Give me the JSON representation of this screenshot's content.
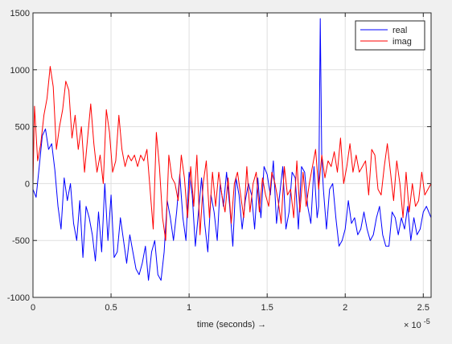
{
  "chart_data": {
    "type": "line",
    "xlabel": "time  (seconds) →",
    "x_exponent_label": "× 10",
    "x_exponent_value": "-5",
    "xlim": [
      0,
      2.55
    ],
    "ylim": [
      -1000,
      1500
    ],
    "x_ticks": [
      0,
      0.5,
      1,
      1.5,
      2,
      2.5
    ],
    "x_tick_labels": [
      "0",
      "0.5",
      "1",
      "1.5",
      "2",
      "2.5"
    ],
    "y_ticks": [
      -1000,
      -500,
      0,
      500,
      1000,
      1500
    ],
    "y_tick_labels": [
      "-1000",
      "-500",
      "0",
      "500",
      "1000",
      "1500"
    ],
    "grid": true,
    "legend_position": "top-right",
    "series": [
      {
        "name": "real",
        "color": "#0000ff",
        "x": [
          0,
          0.02,
          0.04,
          0.06,
          0.08,
          0.1,
          0.12,
          0.14,
          0.16,
          0.18,
          0.2,
          0.22,
          0.24,
          0.26,
          0.28,
          0.3,
          0.32,
          0.34,
          0.36,
          0.38,
          0.4,
          0.42,
          0.44,
          0.46,
          0.48,
          0.5,
          0.52,
          0.54,
          0.56,
          0.58,
          0.6,
          0.62,
          0.64,
          0.66,
          0.68,
          0.7,
          0.72,
          0.74,
          0.76,
          0.78,
          0.8,
          0.82,
          0.84,
          0.86,
          0.88,
          0.9,
          0.92,
          0.94,
          0.96,
          0.98,
          1.0,
          1.02,
          1.04,
          1.06,
          1.08,
          1.1,
          1.12,
          1.14,
          1.16,
          1.18,
          1.2,
          1.22,
          1.24,
          1.26,
          1.28,
          1.3,
          1.32,
          1.34,
          1.36,
          1.38,
          1.4,
          1.42,
          1.44,
          1.46,
          1.48,
          1.5,
          1.52,
          1.54,
          1.56,
          1.58,
          1.6,
          1.62,
          1.64,
          1.66,
          1.68,
          1.7,
          1.72,
          1.74,
          1.76,
          1.78,
          1.8,
          1.82,
          1.83,
          1.84,
          1.85,
          1.86,
          1.88,
          1.9,
          1.92,
          1.94,
          1.96,
          1.98,
          2.0,
          2.02,
          2.04,
          2.06,
          2.08,
          2.1,
          2.12,
          2.14,
          2.16,
          2.18,
          2.2,
          2.22,
          2.24,
          2.26,
          2.28,
          2.3,
          2.32,
          2.34,
          2.36,
          2.38,
          2.4,
          2.42,
          2.44,
          2.46,
          2.48,
          2.5,
          2.52,
          2.55
        ],
        "y": [
          -50,
          -120,
          150,
          420,
          480,
          300,
          350,
          120,
          -200,
          -400,
          50,
          -150,
          0,
          -350,
          -500,
          -150,
          -650,
          -200,
          -300,
          -450,
          -680,
          -250,
          -600,
          0,
          -500,
          -100,
          -650,
          -600,
          -300,
          -500,
          -700,
          -450,
          -600,
          -750,
          -800,
          -700,
          -550,
          -850,
          -600,
          -500,
          -800,
          -850,
          -600,
          -150,
          -300,
          -500,
          -250,
          80,
          -300,
          -500,
          100,
          -100,
          -550,
          -250,
          50,
          -350,
          -600,
          -100,
          -250,
          -500,
          0,
          -200,
          100,
          -200,
          -550,
          50,
          -100,
          -400,
          -150,
          0,
          -100,
          -400,
          50,
          -300,
          150,
          80,
          -100,
          200,
          -350,
          -100,
          150,
          -400,
          -250,
          100,
          50,
          -400,
          150,
          100,
          -200,
          -350,
          150,
          -300,
          -200,
          1450,
          200,
          -50,
          -400,
          -50,
          0,
          -300,
          -550,
          -500,
          -400,
          -150,
          -350,
          -300,
          -450,
          -400,
          -250,
          -400,
          -500,
          -450,
          -300,
          -200,
          -450,
          -550,
          -550,
          -250,
          -300,
          -450,
          -300,
          -400,
          -200,
          -500,
          -300,
          -450,
          -400,
          -250,
          -200,
          -300
        ]
      },
      {
        "name": "imag",
        "color": "#ff0000",
        "x": [
          0,
          0.01,
          0.03,
          0.05,
          0.07,
          0.09,
          0.11,
          0.13,
          0.15,
          0.17,
          0.19,
          0.21,
          0.23,
          0.25,
          0.27,
          0.29,
          0.31,
          0.33,
          0.35,
          0.37,
          0.39,
          0.41,
          0.43,
          0.45,
          0.47,
          0.49,
          0.51,
          0.53,
          0.55,
          0.57,
          0.59,
          0.61,
          0.63,
          0.65,
          0.67,
          0.69,
          0.71,
          0.73,
          0.75,
          0.77,
          0.79,
          0.81,
          0.83,
          0.85,
          0.87,
          0.89,
          0.91,
          0.93,
          0.95,
          0.97,
          0.99,
          1.01,
          1.03,
          1.05,
          1.07,
          1.09,
          1.11,
          1.13,
          1.15,
          1.17,
          1.19,
          1.21,
          1.23,
          1.25,
          1.27,
          1.29,
          1.31,
          1.33,
          1.35,
          1.37,
          1.39,
          1.41,
          1.43,
          1.45,
          1.47,
          1.49,
          1.51,
          1.53,
          1.55,
          1.57,
          1.59,
          1.61,
          1.63,
          1.65,
          1.67,
          1.69,
          1.71,
          1.73,
          1.75,
          1.77,
          1.79,
          1.81,
          1.83,
          1.85,
          1.87,
          1.89,
          1.91,
          1.93,
          1.95,
          1.97,
          1.99,
          2.01,
          2.03,
          2.05,
          2.07,
          2.09,
          2.11,
          2.13,
          2.15,
          2.17,
          2.19,
          2.21,
          2.23,
          2.25,
          2.27,
          2.29,
          2.31,
          2.33,
          2.35,
          2.37,
          2.39,
          2.41,
          2.43,
          2.45,
          2.47,
          2.49,
          2.51,
          2.53,
          2.55
        ],
        "y": [
          0,
          680,
          200,
          350,
          600,
          750,
          1030,
          850,
          300,
          500,
          650,
          900,
          820,
          400,
          600,
          300,
          500,
          100,
          400,
          700,
          350,
          100,
          250,
          0,
          650,
          450,
          100,
          200,
          600,
          300,
          150,
          250,
          200,
          250,
          150,
          250,
          200,
          300,
          -50,
          -400,
          450,
          150,
          -300,
          -500,
          250,
          50,
          0,
          -150,
          250,
          50,
          -300,
          150,
          -200,
          250,
          -450,
          0,
          200,
          -300,
          100,
          -200,
          100,
          -100,
          -250,
          50,
          -350,
          0,
          100,
          -100,
          -300,
          150,
          -250,
          0,
          100,
          -250,
          50,
          -100,
          -200,
          100,
          0,
          -150,
          -350,
          150,
          -100,
          -50,
          -300,
          200,
          -250,
          100,
          -200,
          0,
          150,
          300,
          -50,
          250,
          50,
          200,
          150,
          280,
          100,
          400,
          0,
          150,
          350,
          100,
          250,
          100,
          150,
          200,
          -100,
          300,
          250,
          -50,
          -100,
          150,
          350,
          100,
          -150,
          200,
          0,
          -300,
          100,
          -250,
          0,
          -200,
          -150,
          100,
          -100,
          -50,
          0
        ]
      }
    ]
  }
}
